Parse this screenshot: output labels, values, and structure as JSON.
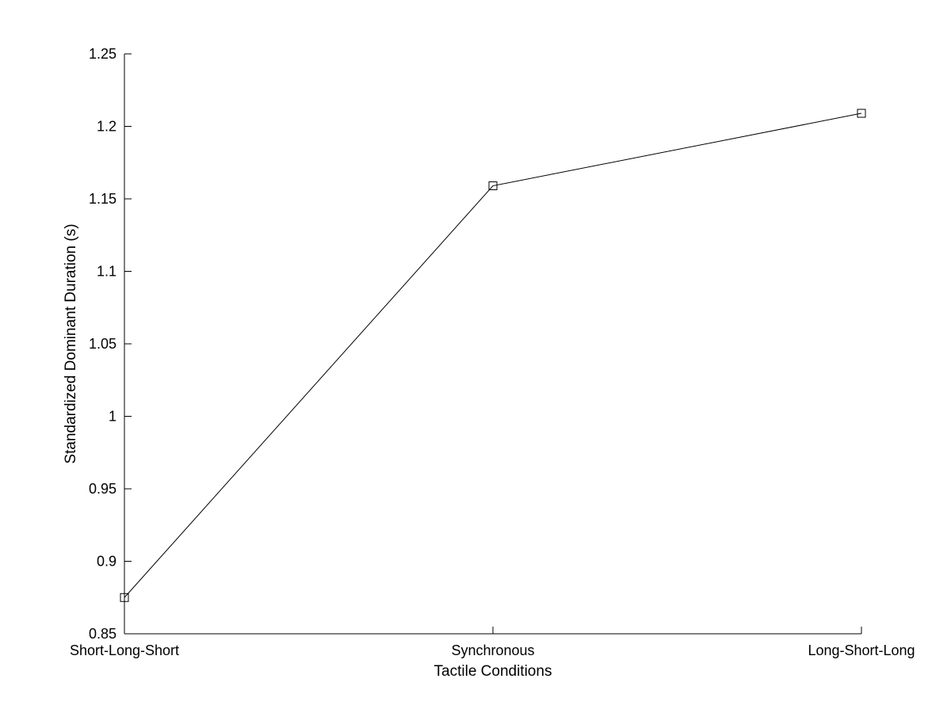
{
  "chart_data": {
    "type": "line",
    "title": "",
    "xlabel": "Tactile Conditions",
    "ylabel": "Standardized Dominant Duration (s)",
    "categories": [
      "Short-Long-Short",
      "Synchronous",
      "Long-Short-Long"
    ],
    "series": [
      {
        "values": [
          0.875,
          1.159,
          1.209
        ],
        "marker": "square",
        "color": "#000000"
      }
    ],
    "ylim": [
      0.85,
      1.25
    ],
    "yticks": [
      "0.85",
      "0.9",
      "0.95",
      "1",
      "1.05",
      "1.1",
      "1.15",
      "1.2",
      "1.25"
    ],
    "grid": false,
    "legend": "none"
  }
}
